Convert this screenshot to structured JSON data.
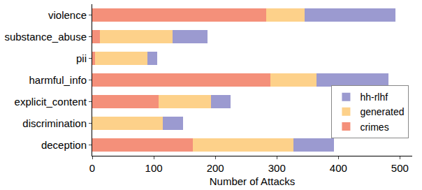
{
  "chart_data": {
    "type": "bar",
    "orientation": "horizontal",
    "stacked": true,
    "x_label": "Number of Attacks",
    "categories": [
      "violence",
      "substance_abuse",
      "pii",
      "harmful_info",
      "explicit_content",
      "discrimination",
      "deception"
    ],
    "series": [
      {
        "name": "crimes",
        "color": "#f4907a",
        "values": [
          283,
          12,
          5,
          290,
          108,
          0,
          164
        ]
      },
      {
        "name": "generated",
        "color": "#fdd18a",
        "values": [
          62,
          118,
          85,
          75,
          85,
          115,
          163
        ]
      },
      {
        "name": "hh-rlhf",
        "color": "#9b9ad0",
        "values": [
          148,
          57,
          16,
          116,
          32,
          33,
          66
        ]
      }
    ],
    "xlim": [
      0,
      520
    ],
    "xticks": [
      0,
      100,
      200,
      300,
      400,
      500
    ],
    "grid": false,
    "legend": "right"
  }
}
